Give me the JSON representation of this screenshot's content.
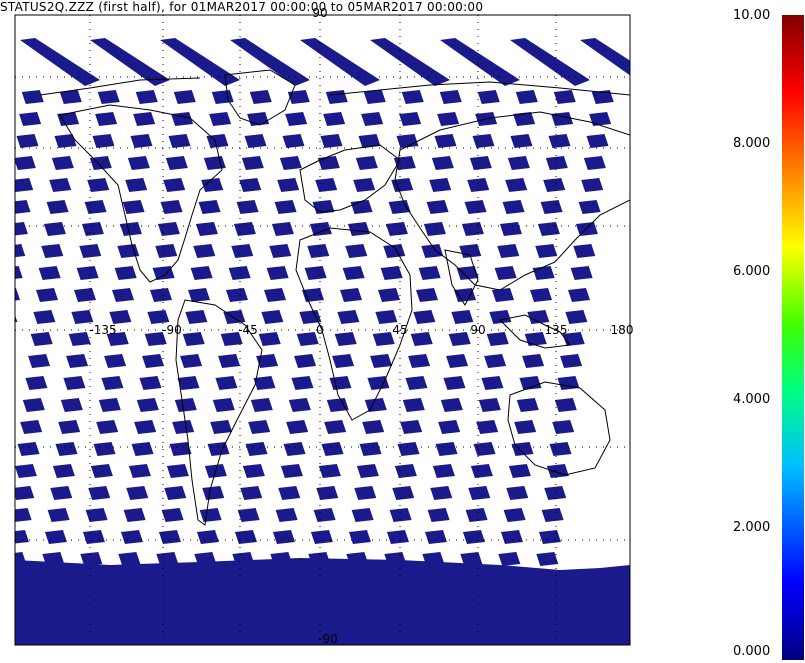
{
  "title": "STATUS2Q.ZZZ (first half), for 01MAR2017 00:00:00 to 05MAR2017 00:00:00",
  "map": {
    "top_label": "90",
    "bottom_label": "-90",
    "lon_labels": [
      "-135",
      "-90",
      "-45",
      "0",
      "45",
      "90",
      "135",
      "180"
    ],
    "swath_color": "#1a1a8c",
    "polar_color": "#1a1a8c",
    "background": "#ffffff",
    "grid": "dotted"
  },
  "colorbar": {
    "labels": [
      "10.00",
      "8.000",
      "6.000",
      "4.000",
      "2.000",
      "0.000"
    ],
    "colors": [
      "#000080",
      "#0000ff",
      "#00ffff",
      "#00ff00",
      "#ffff00",
      "#ff8000",
      "#ff0000",
      "#800000"
    ]
  }
}
